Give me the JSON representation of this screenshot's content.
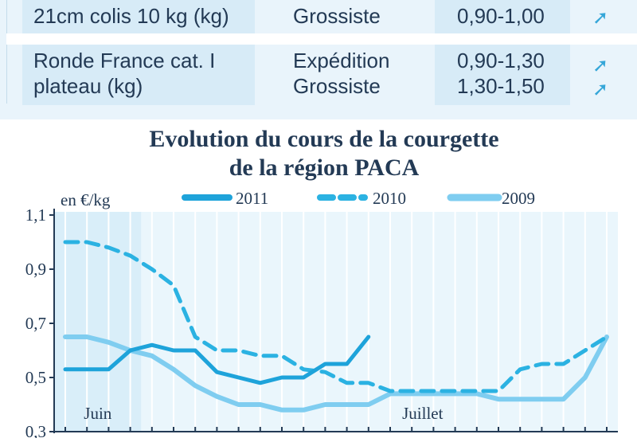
{
  "table": {
    "rows": [
      {
        "product_lines": [
          "21cm colis 10 kg (kg)"
        ],
        "stages": [
          "Grossiste"
        ],
        "prices": [
          "0,90-1,00"
        ],
        "trend_icons": [
          "trend-up-icon"
        ]
      },
      {
        "product_lines": [
          "Ronde France cat. I",
          "plateau (kg)"
        ],
        "stages": [
          "Expédition",
          "Grossiste"
        ],
        "prices": [
          "0,90-1,30",
          "1,30-1,50"
        ],
        "trend_icons": [
          "trend-up-icon",
          "trend-up-icon"
        ]
      }
    ]
  },
  "colors": {
    "s2011": "#1ea3da",
    "s2010": "#2bb2e2",
    "s2009": "#7fcdf0",
    "axis": "#233a55",
    "plot_bg": "#eaf6fc",
    "june_band": "#d9eef9"
  },
  "chart_data": {
    "type": "line",
    "title_lines": [
      "Evolution du cours de la courgette",
      "de la région PACA"
    ],
    "ylabel": "en €/kg",
    "ylim": [
      0.3,
      1.1
    ],
    "y_ticks": [
      "1,1",
      "0,9",
      "0,7",
      "0,5",
      "0,3"
    ],
    "y_tick_values": [
      1.1,
      0.9,
      0.7,
      0.5,
      0.3
    ],
    "x_count": 26,
    "x_period_labels": [
      {
        "label": "Juin",
        "at": 1.5
      },
      {
        "label": "Juillet",
        "at": 16.5
      }
    ],
    "june_band_range": [
      0,
      3.5
    ],
    "legend_position": "top",
    "series": [
      {
        "name": "2011",
        "style": "solid",
        "values": [
          0.53,
          0.53,
          0.53,
          0.6,
          0.62,
          0.6,
          0.6,
          0.52,
          0.5,
          0.48,
          0.5,
          0.5,
          0.55,
          0.55,
          0.65
        ]
      },
      {
        "name": "2010",
        "style": "dashed",
        "values": [
          1.0,
          1.0,
          0.98,
          0.95,
          0.9,
          0.84,
          0.65,
          0.6,
          0.6,
          0.58,
          0.58,
          0.53,
          0.52,
          0.48,
          0.48,
          0.45,
          0.45,
          0.45,
          0.45,
          0.45,
          0.45,
          0.53,
          0.55,
          0.55,
          0.6,
          0.65
        ]
      },
      {
        "name": "2009",
        "style": "thick",
        "values": [
          0.65,
          0.65,
          0.63,
          0.6,
          0.58,
          0.53,
          0.47,
          0.43,
          0.4,
          0.4,
          0.38,
          0.38,
          0.4,
          0.4,
          0.4,
          0.44,
          0.44,
          0.44,
          0.44,
          0.44,
          0.42,
          0.42,
          0.42,
          0.42,
          0.5,
          0.65
        ]
      }
    ]
  }
}
